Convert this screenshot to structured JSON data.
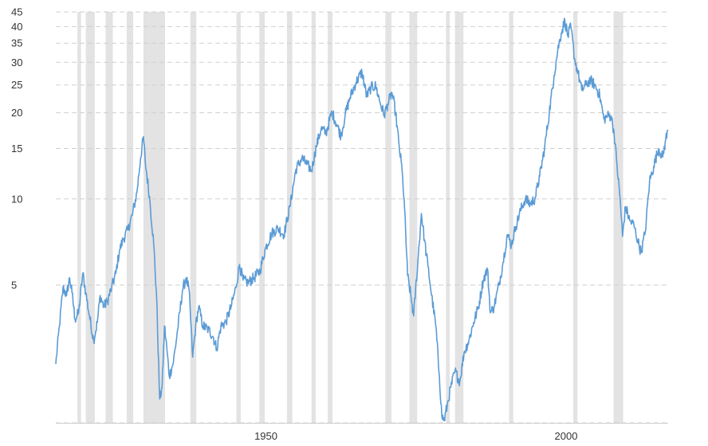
{
  "chart_data": {
    "type": "line",
    "title": "",
    "xlabel": "",
    "ylabel": "",
    "y_scale": "log",
    "ylim": [
      1.65,
      45
    ],
    "xlim": [
      1915,
      2017
    ],
    "y_ticks": [
      5,
      10,
      15,
      20,
      25,
      30,
      35,
      40,
      45
    ],
    "y_tick_labels": [
      "5",
      "10",
      "15",
      "20",
      "25",
      "30",
      "35",
      "40",
      "45"
    ],
    "x_ticks": [
      1950,
      2000
    ],
    "x_tick_labels": [
      "1950",
      "2000"
    ],
    "grid": true,
    "legend": "none",
    "colors": {
      "line": "#5b9bd5",
      "recession": "#e3e3e3",
      "grid": "#cfcfcf",
      "text": "#333333"
    },
    "recession_periods": [
      [
        1918.6,
        1919.2
      ],
      [
        1920.0,
        1921.5
      ],
      [
        1923.3,
        1924.5
      ],
      [
        1926.8,
        1927.9
      ],
      [
        1929.6,
        1933.2
      ],
      [
        1937.4,
        1938.4
      ],
      [
        1945.1,
        1945.8
      ],
      [
        1948.9,
        1949.8
      ],
      [
        1953.5,
        1954.4
      ],
      [
        1957.6,
        1958.3
      ],
      [
        1960.3,
        1961.1
      ],
      [
        1969.9,
        1970.9
      ],
      [
        1973.9,
        1975.2
      ],
      [
        1980.0,
        1980.6
      ],
      [
        1981.5,
        1982.9
      ],
      [
        1990.5,
        1991.2
      ],
      [
        2001.2,
        2001.9
      ],
      [
        2007.9,
        2009.5
      ]
    ],
    "series": [
      {
        "values": [
          [
            1915.0,
            2.65
          ],
          [
            1915.6,
            3.6
          ],
          [
            1916.2,
            4.9
          ],
          [
            1916.8,
            4.6
          ],
          [
            1917.3,
            5.3
          ],
          [
            1917.7,
            4.7
          ],
          [
            1918.2,
            3.8
          ],
          [
            1918.8,
            4.0
          ],
          [
            1919.5,
            5.5
          ],
          [
            1920.0,
            4.7
          ],
          [
            1920.6,
            3.9
          ],
          [
            1921.3,
            3.2
          ],
          [
            1921.9,
            3.7
          ],
          [
            1922.4,
            4.6
          ],
          [
            1923.0,
            4.2
          ],
          [
            1923.6,
            4.4
          ],
          [
            1924.3,
            4.9
          ],
          [
            1925.0,
            5.5
          ],
          [
            1925.6,
            6.6
          ],
          [
            1926.2,
            7.2
          ],
          [
            1927.0,
            7.8
          ],
          [
            1927.8,
            8.9
          ],
          [
            1928.5,
            10.5
          ],
          [
            1929.1,
            13.8
          ],
          [
            1929.6,
            16.5
          ],
          [
            1929.9,
            13.5
          ],
          [
            1930.6,
            10.2
          ],
          [
            1931.3,
            7.0
          ],
          [
            1931.8,
            4.5
          ],
          [
            1932.3,
            2.0
          ],
          [
            1932.7,
            2.2
          ],
          [
            1933.1,
            3.6
          ],
          [
            1933.5,
            3.0
          ],
          [
            1933.9,
            2.4
          ],
          [
            1934.6,
            2.7
          ],
          [
            1935.3,
            3.5
          ],
          [
            1936.1,
            4.8
          ],
          [
            1936.7,
            5.3
          ],
          [
            1937.2,
            4.8
          ],
          [
            1937.8,
            2.8
          ],
          [
            1938.3,
            3.6
          ],
          [
            1938.8,
            4.2
          ],
          [
            1939.5,
            3.6
          ],
          [
            1940.4,
            3.5
          ],
          [
            1941.2,
            3.3
          ],
          [
            1941.8,
            3.0
          ],
          [
            1942.5,
            3.6
          ],
          [
            1943.3,
            3.7
          ],
          [
            1944.2,
            4.2
          ],
          [
            1945.0,
            4.9
          ],
          [
            1945.6,
            5.9
          ],
          [
            1946.2,
            5.2
          ],
          [
            1947.0,
            5.1
          ],
          [
            1948.0,
            5.3
          ],
          [
            1949.0,
            5.6
          ],
          [
            1950.0,
            6.8
          ],
          [
            1951.0,
            7.6
          ],
          [
            1952.0,
            7.9
          ],
          [
            1953.0,
            7.5
          ],
          [
            1954.0,
            9.4
          ],
          [
            1955.0,
            12.7
          ],
          [
            1956.0,
            13.9
          ],
          [
            1956.8,
            13.2
          ],
          [
            1957.6,
            12.6
          ],
          [
            1958.4,
            15.3
          ],
          [
            1959.2,
            17.6
          ],
          [
            1960.0,
            17.0
          ],
          [
            1961.0,
            20.1
          ],
          [
            1961.8,
            18.2
          ],
          [
            1962.5,
            16.6
          ],
          [
            1963.2,
            19.6
          ],
          [
            1964.0,
            22.6
          ],
          [
            1965.0,
            25.5
          ],
          [
            1966.0,
            27.8
          ],
          [
            1966.8,
            22.8
          ],
          [
            1967.5,
            24.5
          ],
          [
            1968.3,
            24.8
          ],
          [
            1969.0,
            21.8
          ],
          [
            1969.7,
            19.6
          ],
          [
            1970.3,
            21.5
          ],
          [
            1971.0,
            23.5
          ],
          [
            1971.6,
            20.0
          ],
          [
            1972.2,
            15.2
          ],
          [
            1972.7,
            12.5
          ],
          [
            1973.1,
            9.2
          ],
          [
            1973.6,
            5.4
          ],
          [
            1974.2,
            4.5
          ],
          [
            1974.6,
            3.9
          ],
          [
            1975.3,
            6.0
          ],
          [
            1975.9,
            8.9
          ],
          [
            1976.4,
            7.2
          ],
          [
            1977.0,
            5.8
          ],
          [
            1977.6,
            4.6
          ],
          [
            1978.3,
            3.6
          ],
          [
            1978.9,
            2.4
          ],
          [
            1979.3,
            1.75
          ],
          [
            1979.7,
            1.68
          ],
          [
            1980.2,
            1.9
          ],
          [
            1980.8,
            2.2
          ],
          [
            1981.5,
            2.5
          ],
          [
            1982.3,
            2.3
          ],
          [
            1983.0,
            2.9
          ],
          [
            1983.8,
            3.2
          ],
          [
            1984.6,
            3.7
          ],
          [
            1985.4,
            4.2
          ],
          [
            1986.2,
            5.2
          ],
          [
            1986.9,
            5.7
          ],
          [
            1987.4,
            4.0
          ],
          [
            1988.0,
            4.2
          ],
          [
            1988.8,
            5.0
          ],
          [
            1989.5,
            6.0
          ],
          [
            1990.2,
            7.5
          ],
          [
            1990.9,
            6.9
          ],
          [
            1991.6,
            8.0
          ],
          [
            1992.4,
            9.1
          ],
          [
            1993.2,
            10.0
          ],
          [
            1994.0,
            9.6
          ],
          [
            1994.8,
            10.0
          ],
          [
            1995.6,
            12.0
          ],
          [
            1996.4,
            15.0
          ],
          [
            1997.2,
            20.0
          ],
          [
            1998.0,
            27.0
          ],
          [
            1998.6,
            33.0
          ],
          [
            1999.2,
            38.0
          ],
          [
            1999.8,
            42.0
          ],
          [
            2000.3,
            37.0
          ],
          [
            2000.8,
            40.0
          ],
          [
            2001.4,
            31.0
          ],
          [
            2002.0,
            27.5
          ],
          [
            2002.6,
            24.0
          ],
          [
            2003.3,
            25.0
          ],
          [
            2004.0,
            26.0
          ],
          [
            2004.8,
            25.0
          ],
          [
            2005.6,
            23.0
          ],
          [
            2006.3,
            19.0
          ],
          [
            2006.9,
            19.5
          ],
          [
            2007.5,
            19.5
          ],
          [
            2008.0,
            17.0
          ],
          [
            2008.5,
            13.0
          ],
          [
            2009.0,
            10.0
          ],
          [
            2009.4,
            7.4
          ],
          [
            2009.9,
            9.4
          ],
          [
            2010.6,
            8.4
          ],
          [
            2011.3,
            8.1
          ],
          [
            2011.9,
            7.2
          ],
          [
            2012.5,
            6.5
          ],
          [
            2013.2,
            7.7
          ],
          [
            2013.9,
            11.5
          ],
          [
            2014.6,
            13.0
          ],
          [
            2015.4,
            15.0
          ],
          [
            2016.1,
            14.0
          ],
          [
            2016.6,
            16.2
          ],
          [
            2017.0,
            17.3
          ]
        ]
      }
    ]
  }
}
